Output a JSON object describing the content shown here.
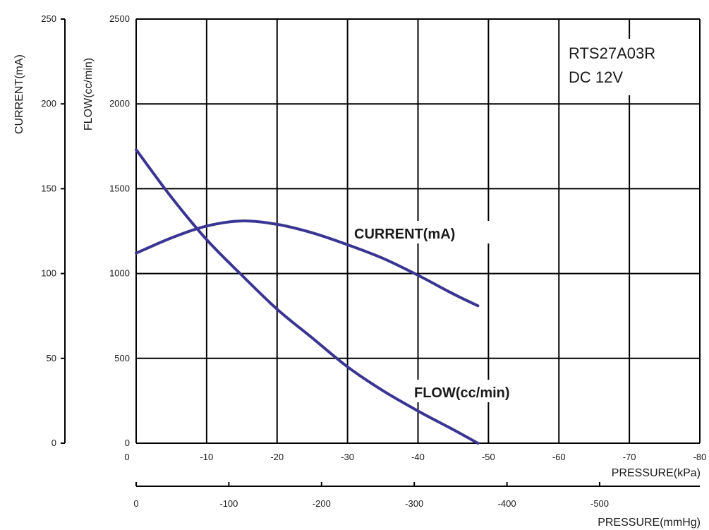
{
  "chart_data": {
    "type": "line",
    "model": "RTS27A03R",
    "voltage": "DC 12V",
    "x_axis": {
      "label": "PRESSURE(kPa)",
      "range": [
        0,
        -80
      ],
      "ticks": [
        "0",
        "-10",
        "-20",
        "-30",
        "-40",
        "-50",
        "-60",
        "-70",
        "-80"
      ]
    },
    "x2_axis": {
      "label": "PRESSURE(mmHg)",
      "ticks": [
        "0",
        "-100",
        "-200",
        "-300",
        "-400",
        "-500"
      ]
    },
    "flow_axis": {
      "label": "FLOW(cc/min)",
      "range": [
        0,
        2500
      ],
      "ticks": [
        "0",
        "500",
        "1000",
        "1500",
        "2000",
        "2500"
      ]
    },
    "current_axis": {
      "label": "CURRENT(mA)",
      "range": [
        0,
        250
      ],
      "ticks": [
        "0",
        "50",
        "100",
        "150",
        "200",
        "250"
      ]
    },
    "grid": true,
    "series": [
      {
        "name": "CURRENT(mA)",
        "axis": "current",
        "color": "#3a3592",
        "x": [
          0,
          -5,
          -10,
          -15,
          -20,
          -25,
          -30,
          -35,
          -40,
          -45,
          -48.5
        ],
        "y": [
          112,
          121,
          128,
          131,
          129,
          124,
          117,
          109,
          99,
          88,
          81
        ]
      },
      {
        "name": "FLOW(cc/min)",
        "axis": "flow",
        "color": "#3a3592",
        "x": [
          0,
          -5,
          -10,
          -15,
          -20,
          -25,
          -30,
          -35,
          -40,
          -45,
          -48.5
        ],
        "y": [
          1730,
          1450,
          1200,
          990,
          790,
          620,
          450,
          310,
          190,
          80,
          0
        ]
      }
    ]
  }
}
